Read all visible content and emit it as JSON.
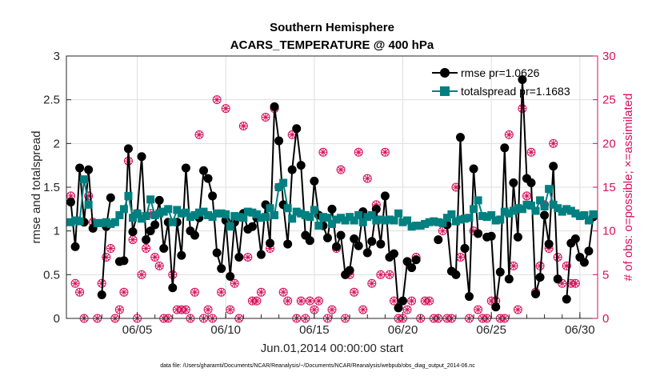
{
  "chart_data": {
    "type": "line",
    "title": "Southern Hemisphere",
    "subtitle": "ACARS_TEMPERATURE @ 400 hPa",
    "xlabel": "Jun.01,2014 00:00:00 start",
    "ylabel": "rmse and totalspread",
    "ylabel_right": "# of obs: o=possible; ×=assimilated",
    "footnote": "data file: /Users/gharamti/Documents/NCAR/Reanalysis/~/Documents/NCAR/Reanalysis/webpub/obs_diag_output_2014-06.nc",
    "xlim": [
      1,
      31
    ],
    "ylim": [
      0,
      3
    ],
    "ylim_right": [
      0,
      30
    ],
    "x_ticks": [
      {
        "v": 5,
        "label": "06/05"
      },
      {
        "v": 10,
        "label": "06/10"
      },
      {
        "v": 15,
        "label": "06/15"
      },
      {
        "v": 20,
        "label": "06/20"
      },
      {
        "v": 25,
        "label": "06/25"
      },
      {
        "v": 30,
        "label": "06/30"
      }
    ],
    "y_ticks": [
      {
        "v": 0,
        "label": "0"
      },
      {
        "v": 0.5,
        "label": "0.5"
      },
      {
        "v": 1,
        "label": "1"
      },
      {
        "v": 1.5,
        "label": "1.5"
      },
      {
        "v": 2,
        "label": "2"
      },
      {
        "v": 2.5,
        "label": "2.5"
      },
      {
        "v": 3,
        "label": "3"
      }
    ],
    "y_ticks_right": [
      {
        "v": 0,
        "label": "0"
      },
      {
        "v": 5,
        "label": "5"
      },
      {
        "v": 10,
        "label": "10"
      },
      {
        "v": 15,
        "label": "15"
      },
      {
        "v": 20,
        "label": "20"
      },
      {
        "v": 25,
        "label": "25"
      },
      {
        "v": 30,
        "label": "30"
      }
    ],
    "grid": true,
    "legend_position": "top-right",
    "colors": {
      "rmse": "#000000",
      "totalspread": "#008080",
      "obs": "#d6105a"
    },
    "series": [
      {
        "name": "rmse pr=1.0626",
        "marker": "circle",
        "x": [
          1.25,
          1.5,
          1.75,
          2.0,
          2.25,
          2.5,
          2.75,
          3.0,
          3.25,
          3.5,
          3.75,
          4.0,
          4.25,
          4.5,
          4.75,
          5.0,
          5.25,
          5.5,
          5.75,
          6.0,
          6.25,
          6.5,
          6.75,
          7.0,
          7.25,
          7.5,
          7.75,
          8.0,
          8.25,
          8.5,
          8.75,
          9.0,
          9.25,
          9.5,
          9.75,
          10.0,
          10.25,
          10.5,
          10.75,
          11.0,
          11.25,
          11.5,
          11.75,
          12.0,
          12.25,
          12.5,
          12.75,
          13.0,
          13.25,
          13.5,
          13.75,
          14.0,
          14.25,
          14.5,
          14.75,
          15.0,
          15.25,
          15.5,
          15.75,
          16.0,
          16.25,
          16.5,
          16.75,
          17.0,
          17.25,
          17.5,
          17.75,
          18.0,
          18.25,
          18.5,
          18.75,
          19.0,
          19.25,
          19.5,
          19.75,
          20.0,
          20.25,
          20.5,
          20.75,
          21.0,
          21.25,
          21.5,
          21.75,
          22.0,
          22.25,
          22.5,
          22.75,
          23.0,
          23.25,
          23.5,
          23.75,
          24.0,
          24.25,
          24.5,
          24.75,
          25.0,
          25.25,
          25.5,
          25.75,
          26.0,
          26.25,
          26.5,
          26.75,
          27.0,
          27.25,
          27.5,
          27.75,
          28.0,
          28.25,
          28.5,
          28.75,
          29.0,
          29.25,
          29.5,
          29.75,
          30.0,
          30.25,
          30.5,
          30.75
        ],
        "values": [
          1.33,
          0.82,
          1.72,
          1.1,
          1.7,
          1.03,
          null,
          0.27,
          1.05,
          1.38,
          null,
          0.65,
          0.66,
          1.94,
          0.99,
          1.2,
          1.85,
          0.9,
          1.0,
          1.07,
          1.35,
          0.8,
          1.1,
          0.35,
          1.1,
          0.72,
          1.72,
          1.0,
          0.95,
          1.15,
          1.69,
          1.6,
          1.4,
          0.75,
          0.57,
          1.12,
          0.48,
          1.1,
          0.7,
          1.2,
          1.02,
          1.05,
          1.15,
          0.73,
          1.3,
          0.86,
          2.42,
          2.03,
          1.3,
          0.85,
          1.7,
          2.17,
          1.75,
          0.95,
          0.89,
          1.57,
          1.18,
          1.06,
          0.92,
          1.25,
          0.82,
          0.95,
          0.5,
          0.55,
          0.91,
          0.83,
          1.22,
          0.75,
          0.88,
          1.25,
          0.85,
          1.4,
          0.7,
          0.74,
          0.12,
          0.2,
          0.65,
          0.58,
          0.67,
          null,
          null,
          null,
          null,
          0.9,
          null,
          1.07,
          0.54,
          0.5,
          2.07,
          0.8,
          0.25,
          1.71,
          0.97,
          null,
          0.93,
          0.94,
          0.13,
          0.53,
          1.95,
          0.45,
          1.55,
          0.93,
          2.73,
          1.6,
          1.55,
          0.28,
          0.47,
          1.18,
          0.85,
          1.74,
          0.45,
          null,
          0.22,
          0.86,
          0.91,
          0.7,
          0.64,
          0.77,
          1.16
        ]
      },
      {
        "name": "totalspread pr=1.1683",
        "marker": "square",
        "x": [
          1.25,
          1.5,
          1.75,
          2.0,
          2.25,
          2.5,
          2.75,
          3.0,
          3.25,
          3.5,
          3.75,
          4.0,
          4.25,
          4.5,
          4.75,
          5.0,
          5.25,
          5.5,
          5.75,
          6.0,
          6.25,
          6.5,
          6.75,
          7.0,
          7.25,
          7.5,
          7.75,
          8.0,
          8.25,
          8.5,
          8.75,
          9.0,
          9.25,
          9.5,
          9.75,
          10.0,
          10.25,
          10.5,
          10.75,
          11.0,
          11.25,
          11.5,
          11.75,
          12.0,
          12.25,
          12.5,
          12.75,
          13.0,
          13.25,
          13.5,
          13.75,
          14.0,
          14.25,
          14.5,
          14.75,
          15.0,
          15.25,
          15.5,
          15.75,
          16.0,
          16.25,
          16.5,
          16.75,
          17.0,
          17.25,
          17.5,
          17.75,
          18.0,
          18.25,
          18.5,
          18.75,
          19.0,
          19.25,
          19.5,
          19.75,
          20.0,
          20.25,
          20.5,
          20.75,
          21.0,
          21.25,
          21.5,
          21.75,
          22.0,
          22.25,
          22.5,
          22.75,
          23.0,
          23.25,
          23.5,
          23.75,
          24.0,
          24.25,
          24.5,
          24.75,
          25.0,
          25.25,
          25.5,
          25.75,
          26.0,
          26.25,
          26.5,
          26.75,
          27.0,
          27.25,
          27.5,
          27.75,
          28.0,
          28.25,
          28.5,
          28.75,
          29.0,
          29.25,
          29.5,
          29.75,
          30.0,
          30.25,
          30.5,
          30.75
        ],
        "values": [
          1.1,
          1.12,
          1.11,
          1.59,
          1.3,
          null,
          1.09,
          1.09,
          1.1,
          1.08,
          1.1,
          1.18,
          1.25,
          1.4,
          1.15,
          1.2,
          1.14,
          1.17,
          1.36,
          1.18,
          1.2,
          1.22,
          1.25,
          1.1,
          1.24,
          1.2,
          1.21,
          1.16,
          1.18,
          1.21,
          1.22,
          1.18,
          1.16,
          1.2,
          1.2,
          1.19,
          1.05,
          1.17,
          1.16,
          1.15,
          1.22,
          1.21,
          1.19,
          1.15,
          1.16,
          1.26,
          1.18,
          1.5,
          1.55,
          1.26,
          1.14,
          1.22,
          1.2,
          1.18,
          1.16,
          1.24,
          1.06,
          1.16,
          1.15,
          1.08,
          1.13,
          1.15,
          1.12,
          1.16,
          1.12,
          1.18,
          1.1,
          1.16,
          1.18,
          1.12,
          1.13,
          1.12,
          1.13,
          1.12,
          1.2,
          1.1,
          1.12,
          1.05,
          1.06,
          1.06,
          1.08,
          1.1,
          1.11,
          1.1,
          1.09,
          1.15,
          1.19,
          1.11,
          1.13,
          1.14,
          1.15,
          1.25,
          1.35,
          1.17,
          1.16,
          1.18,
          1.12,
          1.13,
          1.22,
          1.2,
          1.23,
          1.26,
          1.25,
          1.3,
          1.29,
          1.23,
          1.35,
          1.28,
          1.48,
          1.3,
          1.26,
          1.22,
          1.25,
          1.23,
          1.2,
          1.17,
          1.18,
          1.12,
          1.19
        ]
      }
    ],
    "obs_possible_markers": [
      [
        1.25,
        14
      ],
      [
        1.5,
        4
      ],
      [
        1.75,
        3
      ],
      [
        2.0,
        0
      ],
      [
        2.25,
        14
      ],
      [
        2.5,
        11
      ],
      [
        2.75,
        0
      ],
      [
        3.0,
        4
      ],
      [
        3.25,
        7
      ],
      [
        3.5,
        8
      ],
      [
        3.75,
        0
      ],
      [
        4.0,
        1
      ],
      [
        4.25,
        3
      ],
      [
        4.5,
        18
      ],
      [
        4.75,
        9
      ],
      [
        5.0,
        0
      ],
      [
        5.25,
        5
      ],
      [
        5.5,
        8
      ],
      [
        5.75,
        12
      ],
      [
        6.0,
        7
      ],
      [
        6.25,
        6
      ],
      [
        6.5,
        0
      ],
      [
        6.75,
        0
      ],
      [
        7.0,
        5
      ],
      [
        7.25,
        1
      ],
      [
        7.5,
        1
      ],
      [
        7.75,
        1
      ],
      [
        8.0,
        0
      ],
      [
        8.25,
        3
      ],
      [
        8.5,
        21
      ],
      [
        8.75,
        0
      ],
      [
        9.0,
        1
      ],
      [
        9.25,
        0
      ],
      [
        9.5,
        25
      ],
      [
        9.75,
        3
      ],
      [
        10.0,
        24
      ],
      [
        10.25,
        1
      ],
      [
        10.5,
        4
      ],
      [
        10.75,
        0
      ],
      [
        11.0,
        22
      ],
      [
        11.25,
        7
      ],
      [
        11.5,
        2
      ],
      [
        11.75,
        2
      ],
      [
        12.0,
        3
      ],
      [
        12.25,
        23
      ],
      [
        12.5,
        8
      ],
      [
        12.75,
        24
      ],
      [
        13.0,
        15
      ],
      [
        13.25,
        3
      ],
      [
        13.5,
        2
      ],
      [
        13.75,
        21
      ],
      [
        14.0,
        0
      ],
      [
        14.25,
        2
      ],
      [
        14.5,
        0
      ],
      [
        14.75,
        2
      ],
      [
        15.0,
        1
      ],
      [
        15.25,
        2
      ],
      [
        15.5,
        19
      ],
      [
        15.75,
        0
      ],
      [
        16.0,
        1
      ],
      [
        16.25,
        8
      ],
      [
        16.5,
        17
      ],
      [
        16.75,
        0
      ],
      [
        17.0,
        5
      ],
      [
        17.25,
        3
      ],
      [
        17.5,
        19
      ],
      [
        17.75,
        1
      ],
      [
        18.0,
        16
      ],
      [
        18.25,
        4
      ],
      [
        18.5,
        13
      ],
      [
        18.75,
        5
      ],
      [
        19.0,
        19
      ],
      [
        19.25,
        5
      ],
      [
        19.5,
        2
      ],
      [
        19.75,
        0
      ],
      [
        20.0,
        0
      ],
      [
        20.25,
        1
      ],
      [
        20.5,
        2
      ],
      [
        20.75,
        7
      ],
      [
        21.0,
        0
      ],
      [
        21.25,
        2
      ],
      [
        21.5,
        2
      ],
      [
        21.75,
        0
      ],
      [
        22.0,
        0
      ],
      [
        22.25,
        10
      ],
      [
        22.5,
        0
      ],
      [
        22.75,
        0
      ],
      [
        23.0,
        15
      ],
      [
        23.25,
        7
      ],
      [
        23.5,
        8
      ],
      [
        23.75,
        0
      ],
      [
        24.0,
        10
      ],
      [
        24.25,
        1
      ],
      [
        24.5,
        0
      ],
      [
        24.75,
        0
      ],
      [
        25.0,
        2
      ],
      [
        25.25,
        2
      ],
      [
        25.5,
        0
      ],
      [
        25.75,
        0
      ],
      [
        26.0,
        21
      ],
      [
        26.25,
        6
      ],
      [
        26.5,
        1
      ],
      [
        26.75,
        24
      ],
      [
        27.0,
        14
      ],
      [
        27.25,
        19
      ],
      [
        27.5,
        3
      ],
      [
        27.75,
        6
      ],
      [
        28.0,
        13
      ],
      [
        28.25,
        8
      ],
      [
        28.5,
        20
      ],
      [
        28.75,
        7
      ],
      [
        29.0,
        4
      ],
      [
        29.25,
        6
      ],
      [
        29.5,
        4
      ],
      [
        29.75,
        4
      ]
    ]
  }
}
